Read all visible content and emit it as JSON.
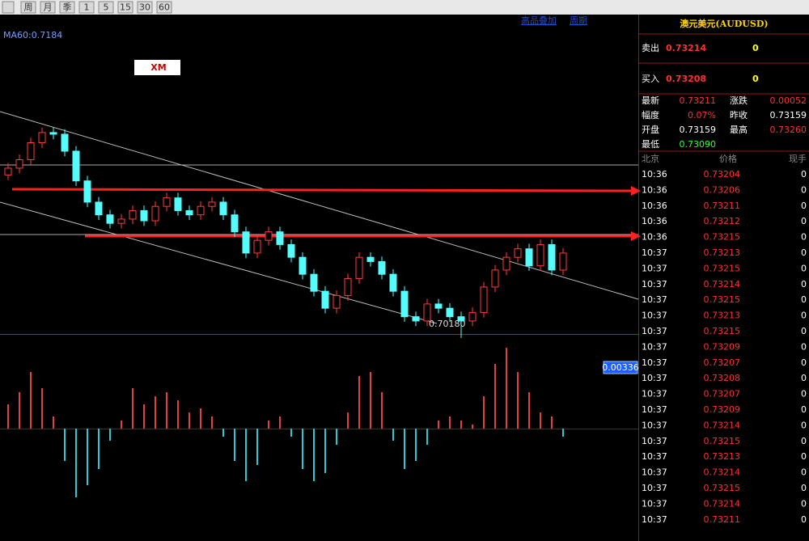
{
  "toolbar": {
    "buttons": [
      "周",
      "月",
      "季",
      "1",
      "5",
      "15",
      "30",
      "60"
    ],
    "links": [
      "高品叠加",
      "周期"
    ]
  },
  "chart": {
    "indicator": "MA60:0.7184",
    "brand": "XM",
    "low_marker": "0.70180",
    "ylim": [
      0.7016,
      0.7378
    ],
    "open": [
      0.721,
      0.7218,
      0.7228,
      0.7248,
      0.726,
      0.7258,
      0.7238,
      0.7203,
      0.7178,
      0.7163,
      0.7153,
      0.7158,
      0.7168,
      0.7156,
      0.7173,
      0.7183,
      0.7168,
      0.7163,
      0.7173,
      0.7178,
      0.7163,
      0.7143,
      0.7118,
      0.7133,
      0.7143,
      0.7128,
      0.7113,
      0.7093,
      0.7073,
      0.7053,
      0.7068,
      0.7088,
      0.7113,
      0.7108,
      0.7093,
      0.7073,
      0.7043,
      0.7038,
      0.7058,
      0.7053,
      0.7043,
      0.7038,
      0.7048,
      0.7078,
      0.7098,
      0.7113,
      0.7123,
      0.7103,
      0.7128,
      0.7098
    ],
    "high": [
      0.7224,
      0.7234,
      0.7254,
      0.7266,
      0.7266,
      0.7264,
      0.7244,
      0.7209,
      0.7184,
      0.7169,
      0.7164,
      0.7174,
      0.7174,
      0.7179,
      0.7189,
      0.7189,
      0.7174,
      0.7179,
      0.7184,
      0.7184,
      0.7169,
      0.7149,
      0.7139,
      0.7149,
      0.7149,
      0.7134,
      0.7119,
      0.7099,
      0.7079,
      0.7074,
      0.7094,
      0.7119,
      0.7119,
      0.7114,
      0.7099,
      0.7079,
      0.7049,
      0.7064,
      0.7064,
      0.7059,
      0.7049,
      0.7054,
      0.7084,
      0.7104,
      0.7119,
      0.7129,
      0.7129,
      0.7134,
      0.7134,
      0.7124
    ],
    "low": [
      0.7204,
      0.7212,
      0.7222,
      0.7242,
      0.7252,
      0.7232,
      0.7197,
      0.7172,
      0.7157,
      0.7147,
      0.7147,
      0.7152,
      0.715,
      0.715,
      0.7167,
      0.7162,
      0.7157,
      0.7157,
      0.7167,
      0.7157,
      0.7137,
      0.7112,
      0.7112,
      0.7127,
      0.7122,
      0.7107,
      0.7087,
      0.7067,
      0.7047,
      0.7047,
      0.7062,
      0.7082,
      0.7102,
      0.7087,
      0.7067,
      0.7037,
      0.7032,
      0.7032,
      0.7047,
      0.7037,
      0.7018,
      0.7032,
      0.7042,
      0.7072,
      0.7092,
      0.7107,
      0.7097,
      0.7097,
      0.7092,
      0.7092
    ],
    "close": [
      0.7218,
      0.7228,
      0.7248,
      0.726,
      0.7258,
      0.7238,
      0.7203,
      0.7178,
      0.7163,
      0.7153,
      0.7158,
      0.7168,
      0.7156,
      0.7173,
      0.7183,
      0.7168,
      0.7163,
      0.7173,
      0.7178,
      0.7163,
      0.7143,
      0.7118,
      0.7133,
      0.7143,
      0.7128,
      0.7113,
      0.7093,
      0.7073,
      0.7053,
      0.7068,
      0.7088,
      0.7113,
      0.7108,
      0.7093,
      0.7073,
      0.7043,
      0.7038,
      0.7058,
      0.7053,
      0.7043,
      0.7038,
      0.7048,
      0.7078,
      0.7098,
      0.7113,
      0.7123,
      0.7103,
      0.7128,
      0.7098,
      0.7118
    ]
  },
  "macd": {
    "price_tag": "0.00336",
    "ylim": [
      -0.0026,
      0.0021
    ],
    "histogram": [
      0.0006,
      0.0009,
      0.0014,
      0.001,
      0.0003,
      -0.0008,
      -0.0017,
      -0.0014,
      -0.001,
      -0.0003,
      0.0002,
      0.001,
      0.0006,
      0.0008,
      0.0009,
      0.0007,
      0.0004,
      0.0005,
      0.0003,
      -0.0002,
      -0.0008,
      -0.0013,
      -0.0009,
      0.0002,
      0.0003,
      -0.0002,
      -0.001,
      -0.0013,
      -0.0011,
      -0.0004,
      0.0004,
      0.0013,
      0.0014,
      0.0009,
      -0.0003,
      -0.001,
      -0.0008,
      -0.0004,
      0.0002,
      0.0003,
      0.0002,
      0.0001,
      0.0008,
      0.0016,
      0.002,
      0.0014,
      0.0009,
      0.0004,
      0.0003,
      -0.0002
    ]
  },
  "quote": {
    "title": "澳元美元(AUDUSD)",
    "sell": {
      "label": "卖出",
      "price": "0.73214",
      "volume": "0"
    },
    "buy": {
      "label": "买入",
      "price": "0.73208",
      "volume": "0"
    },
    "stats": [
      [
        "最新",
        "0.73211",
        "涨跌",
        "0.00052"
      ],
      [
        "幅度",
        "0.07%",
        "昨收",
        "0.73159"
      ],
      [
        "开盘",
        "0.73159",
        "最高",
        "0.73260"
      ],
      [
        "最低",
        "0.73090"
      ]
    ],
    "ticks_header": [
      "北京",
      "价格",
      "现手"
    ],
    "ticks": [
      [
        "10:36",
        "0.73204",
        "0"
      ],
      [
        "10:36",
        "0.73206",
        "0"
      ],
      [
        "10:36",
        "0.73211",
        "0"
      ],
      [
        "10:36",
        "0.73212",
        "0"
      ],
      [
        "10:36",
        "0.73215",
        "0"
      ],
      [
        "10:37",
        "0.73213",
        "0"
      ],
      [
        "10:37",
        "0.73215",
        "0"
      ],
      [
        "10:37",
        "0.73214",
        "0"
      ],
      [
        "10:37",
        "0.73215",
        "0"
      ],
      [
        "10:37",
        "0.73213",
        "0"
      ],
      [
        "10:37",
        "0.73215",
        "0"
      ],
      [
        "10:37",
        "0.73209",
        "0"
      ],
      [
        "10:37",
        "0.73207",
        "0"
      ],
      [
        "10:37",
        "0.73208",
        "0"
      ],
      [
        "10:37",
        "0.73207",
        "0"
      ],
      [
        "10:37",
        "0.73209",
        "0"
      ],
      [
        "10:37",
        "0.73214",
        "0"
      ],
      [
        "10:37",
        "0.73215",
        "0"
      ],
      [
        "10:37",
        "0.73213",
        "0"
      ],
      [
        "10:37",
        "0.73214",
        "0"
      ],
      [
        "10:37",
        "0.73215",
        "0"
      ],
      [
        "10:37",
        "0.73214",
        "0"
      ],
      [
        "10:37",
        "0.73211",
        "0"
      ]
    ]
  }
}
